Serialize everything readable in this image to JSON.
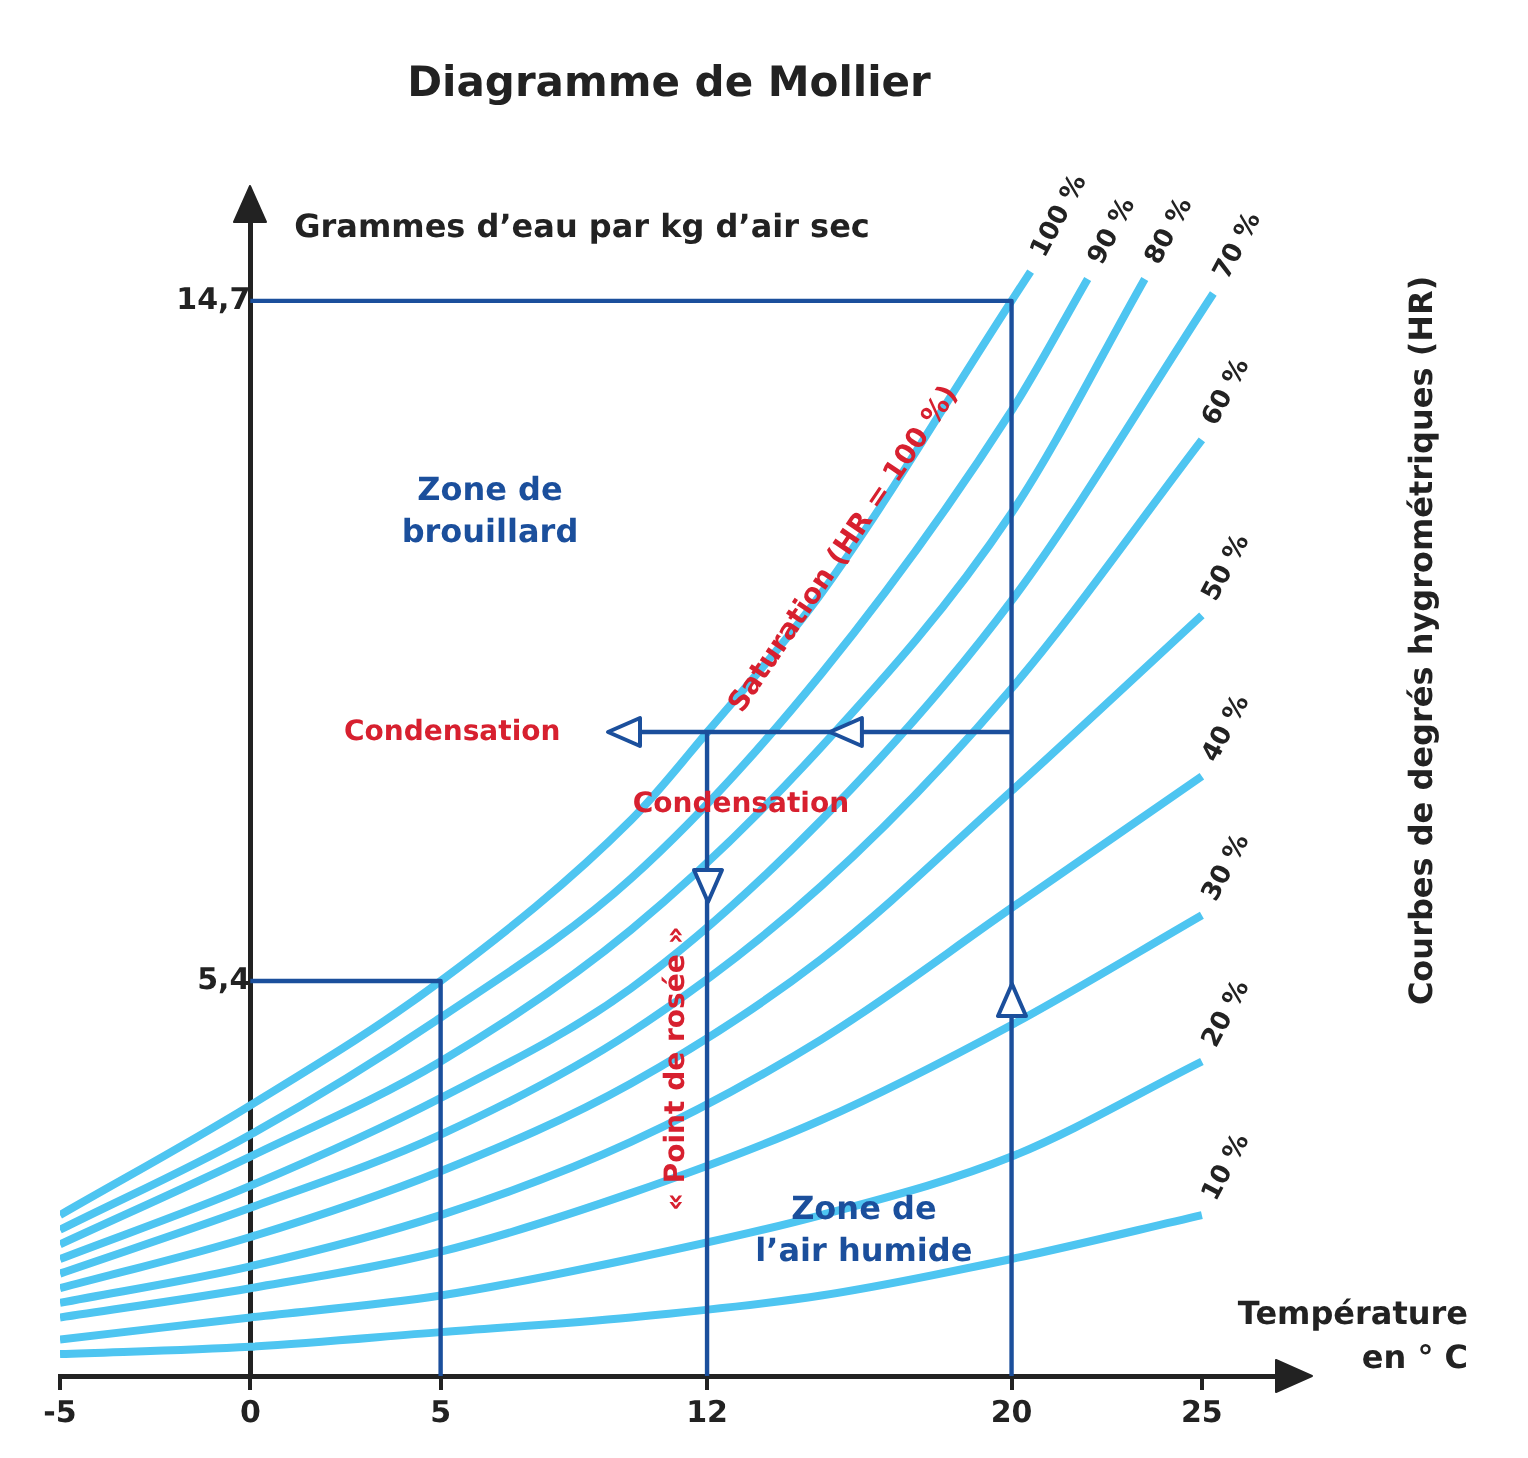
{
  "chart_data": {
    "type": "line",
    "title": "Diagramme de Mollier",
    "ylabel": "Grammes d’eau par kg d’air sec",
    "xlabel": "Température en ° C",
    "y2label": "Courbes de degrés hygrométriques (HR)",
    "xlim": [
      -5,
      27
    ],
    "ylim": [
      0,
      15.8
    ],
    "xticks": [
      -5,
      0,
      5,
      12,
      20,
      25
    ],
    "yticks": [
      {
        "value": 5.4,
        "label": "5,4"
      },
      {
        "value": 14.7,
        "label": "14,7"
      }
    ],
    "annotations": [
      "Zone de brouillard",
      {
        "text": "Saturation (HR = 100 %)",
        "x": 15.6,
        "y": 11.3
      },
      "Condensation",
      "Condensation",
      {
        "text": "« Point de rosée »",
        "x": 11.2,
        "y": 4.2
      },
      "Zone de l’air humide"
    ],
    "series": [
      {
        "name": "100 %",
        "color": "#4ec5f1",
        "x": [
          -5,
          0,
          5,
          10,
          12,
          15,
          20,
          20.5
        ],
        "values": [
          2.2,
          3.7,
          5.4,
          7.6,
          8.8,
          10.7,
          14.7,
          15.1
        ]
      },
      {
        "name": "90 %",
        "color": "#4ec5f1",
        "x": [
          -5,
          0,
          5,
          10,
          15,
          20,
          22
        ],
        "values": [
          2.0,
          3.3,
          4.9,
          6.8,
          9.6,
          13.2,
          15.0
        ]
      },
      {
        "name": "80 %",
        "color": "#4ec5f1",
        "x": [
          -5,
          0,
          5,
          10,
          15,
          20,
          23.5
        ],
        "values": [
          1.8,
          3.0,
          4.3,
          6.1,
          8.6,
          11.8,
          15.0
        ]
      },
      {
        "name": "70 %",
        "color": "#4ec5f1",
        "x": [
          -5,
          0,
          5,
          10,
          15,
          20,
          25.3
        ],
        "values": [
          1.6,
          2.6,
          3.8,
          5.3,
          7.6,
          10.6,
          14.8
        ]
      },
      {
        "name": "60 %",
        "color": "#4ec5f1",
        "x": [
          -5,
          0,
          5,
          10,
          15,
          20,
          25
        ],
        "values": [
          1.4,
          2.3,
          3.3,
          4.7,
          6.7,
          9.4,
          12.8
        ]
      },
      {
        "name": "50 %",
        "color": "#4ec5f1",
        "x": [
          -5,
          0,
          5,
          10,
          15,
          20,
          25
        ],
        "values": [
          1.2,
          1.9,
          2.8,
          4.0,
          5.7,
          8.0,
          10.4
        ]
      },
      {
        "name": "40 %",
        "color": "#4ec5f1",
        "x": [
          -5,
          0,
          5,
          10,
          15,
          20,
          25
        ],
        "values": [
          1.0,
          1.5,
          2.2,
          3.2,
          4.6,
          6.4,
          8.2
        ]
      },
      {
        "name": "30 %",
        "color": "#4ec5f1",
        "x": [
          -5,
          0,
          5,
          10,
          15,
          20,
          25
        ],
        "values": [
          0.8,
          1.2,
          1.7,
          2.5,
          3.5,
          4.8,
          6.3
        ]
      },
      {
        "name": "20 %",
        "color": "#4ec5f1",
        "x": [
          -5,
          0,
          5,
          10,
          15,
          20,
          25
        ],
        "values": [
          0.5,
          0.8,
          1.1,
          1.6,
          2.2,
          3.0,
          4.3
        ]
      },
      {
        "name": "10 %",
        "color": "#4ec5f1",
        "x": [
          -5,
          0,
          5,
          10,
          15,
          20,
          25
        ],
        "values": [
          0.3,
          0.4,
          0.6,
          0.8,
          1.1,
          1.6,
          2.2
        ]
      },
      {
        "color": "#1b4f9c",
        "x": [
          0,
          20,
          20
        ],
        "values": [
          14.7,
          14.7,
          0
        ]
      },
      {
        "color": "#1b4f9c",
        "x": [
          0,
          5,
          5
        ],
        "values": [
          5.4,
          5.4,
          0
        ]
      },
      {
        "color": "#1b4f9c",
        "x": [
          12,
          12
        ],
        "values": [
          8.8,
          0
        ]
      }
    ]
  }
}
